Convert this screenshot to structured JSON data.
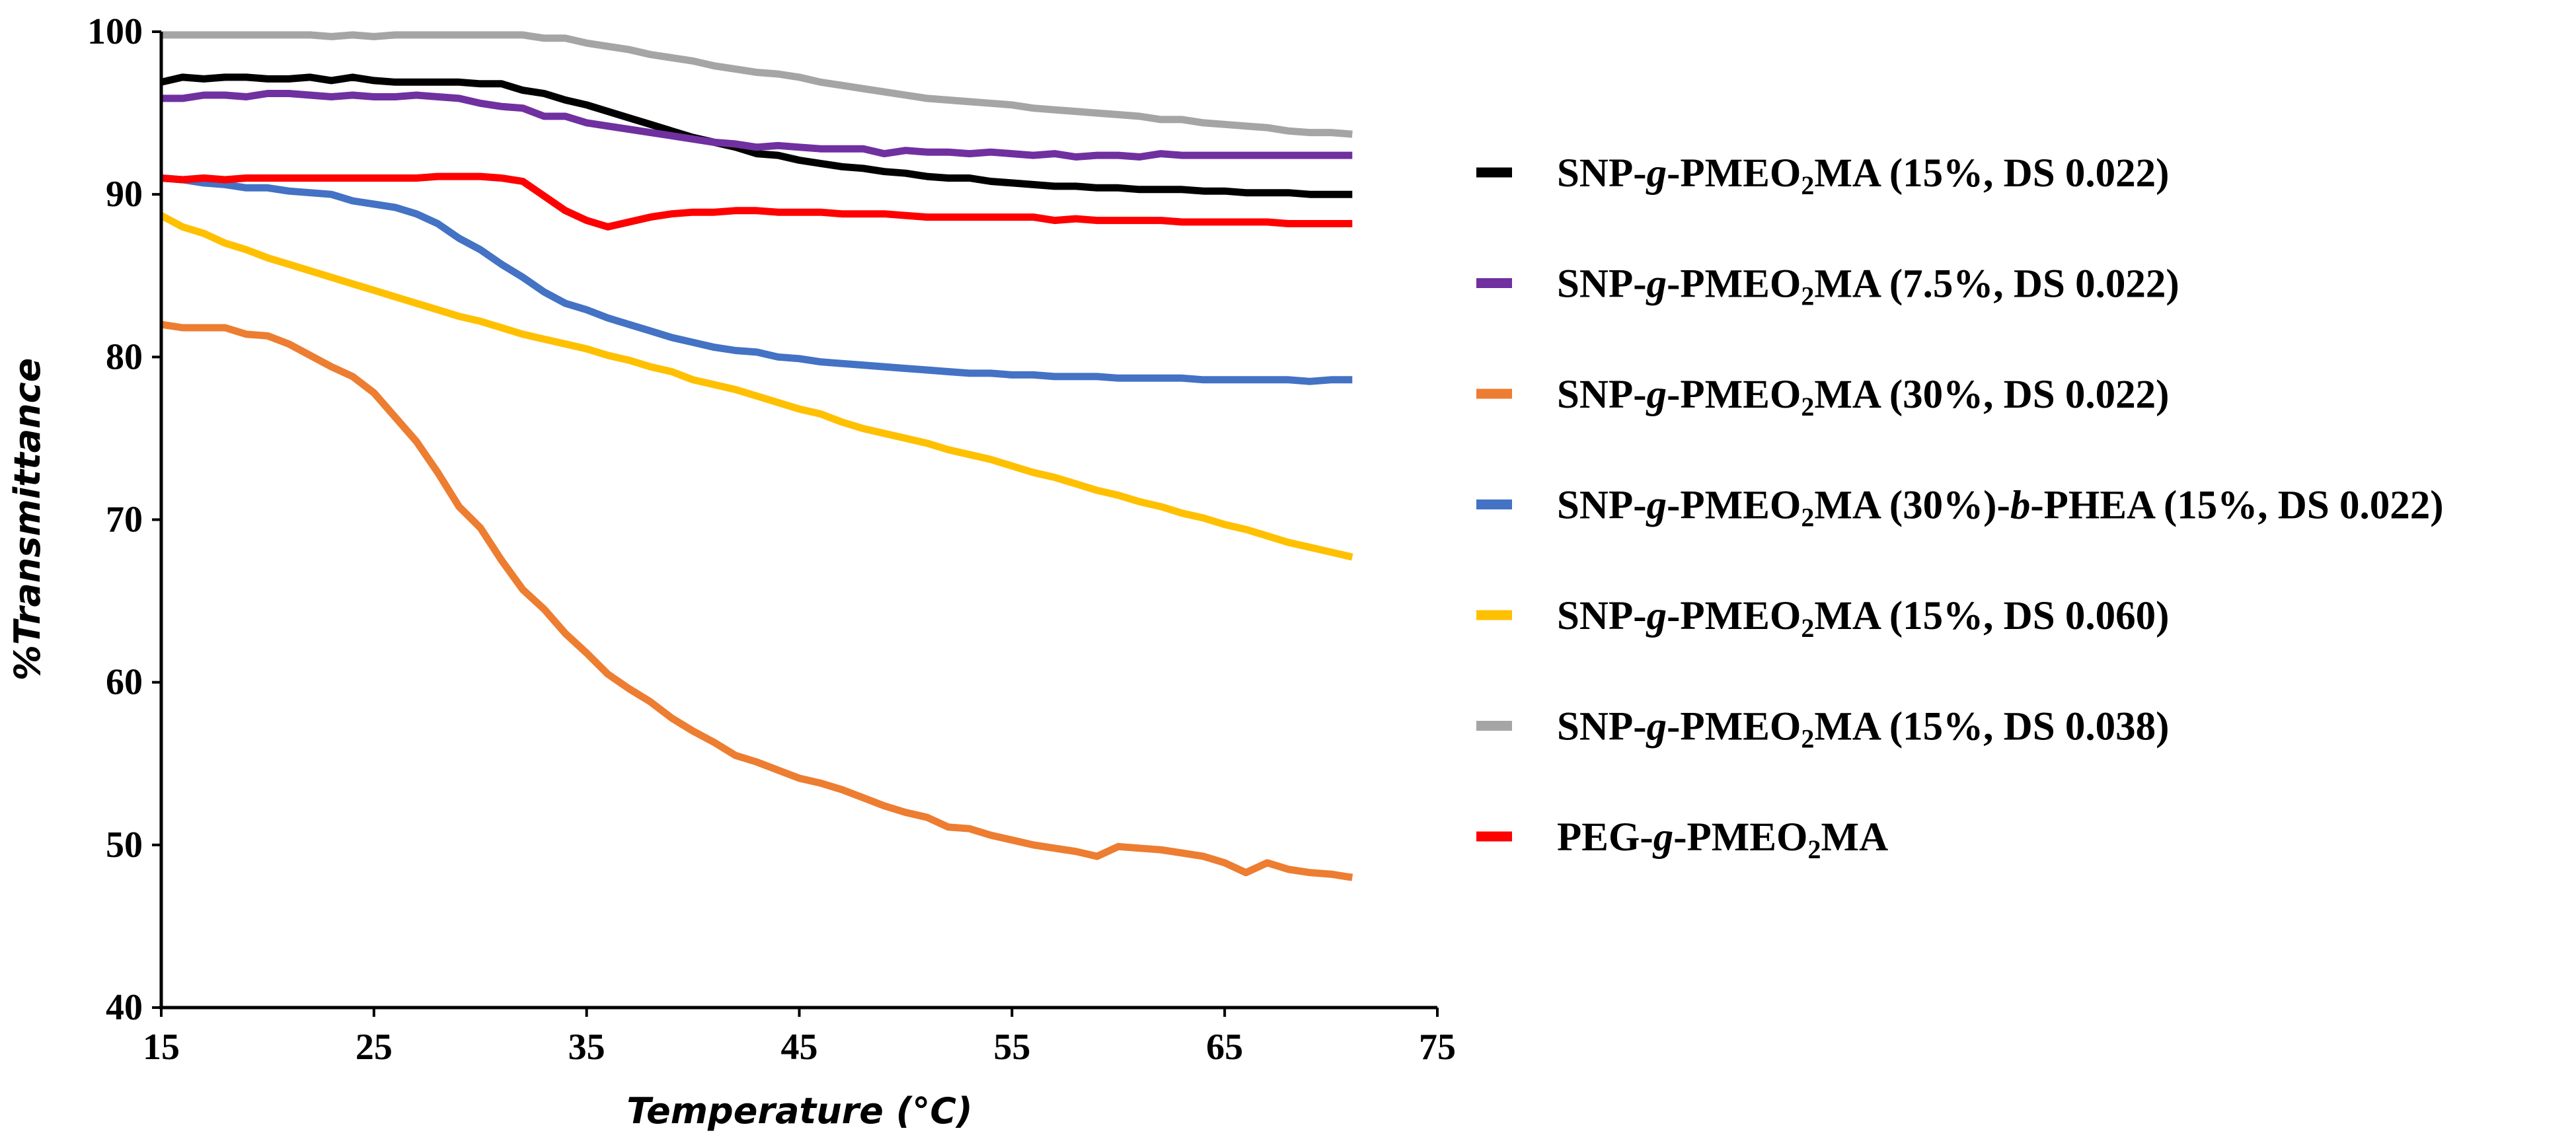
{
  "chart_data": {
    "type": "line",
    "xlabel": "Temperature (°C)",
    "ylabel": "%Transmittance",
    "xlim": [
      15,
      75
    ],
    "ylim": [
      40,
      100
    ],
    "xticks": [
      15,
      25,
      35,
      45,
      55,
      65,
      75
    ],
    "yticks": [
      40,
      50,
      60,
      70,
      80,
      90,
      100
    ],
    "grid": false,
    "legend_position": "right",
    "series": [
      {
        "name": "SNP-g-PMEO2MA (15%, DS 0.022)",
        "color": "#000000",
        "x": [
          15,
          16,
          17,
          18,
          19,
          20,
          21,
          22,
          23,
          24,
          25,
          26,
          27,
          28,
          29,
          30,
          31,
          32,
          33,
          34,
          35,
          36,
          37,
          38,
          39,
          40,
          41,
          42,
          43,
          44,
          45,
          46,
          47,
          48,
          49,
          50,
          51,
          52,
          53,
          54,
          55,
          56,
          57,
          58,
          59,
          60,
          61,
          62,
          63,
          64,
          65,
          66,
          67,
          68,
          69,
          70,
          71
        ],
        "y": [
          96.9,
          97.2,
          97.1,
          97.2,
          97.2,
          97.1,
          97.1,
          97.2,
          97.0,
          97.2,
          97.0,
          96.9,
          96.9,
          96.9,
          96.9,
          96.8,
          96.8,
          96.4,
          96.2,
          95.8,
          95.5,
          95.1,
          94.7,
          94.3,
          93.9,
          93.5,
          93.2,
          92.9,
          92.5,
          92.4,
          92.1,
          91.9,
          91.7,
          91.6,
          91.4,
          91.3,
          91.1,
          91.0,
          91.0,
          90.8,
          90.7,
          90.6,
          90.5,
          90.5,
          90.4,
          90.4,
          90.3,
          90.3,
          90.3,
          90.2,
          90.2,
          90.1,
          90.1,
          90.1,
          90.0,
          90.0,
          90.0
        ]
      },
      {
        "name": "SNP-g-PMEO2MA (7.5%, DS 0.022)",
        "color": "#7030a0",
        "x": [
          15,
          16,
          17,
          18,
          19,
          20,
          21,
          22,
          23,
          24,
          25,
          26,
          27,
          28,
          29,
          30,
          31,
          32,
          33,
          34,
          35,
          36,
          37,
          38,
          39,
          40,
          41,
          42,
          43,
          44,
          45,
          46,
          47,
          48,
          49,
          50,
          51,
          52,
          53,
          54,
          55,
          56,
          57,
          58,
          59,
          60,
          61,
          62,
          63,
          64,
          65,
          66,
          67,
          68,
          69,
          70,
          71
        ],
        "y": [
          95.9,
          95.9,
          96.1,
          96.1,
          96.0,
          96.2,
          96.2,
          96.1,
          96.0,
          96.1,
          96.0,
          96.0,
          96.1,
          96.0,
          95.9,
          95.6,
          95.4,
          95.3,
          94.8,
          94.8,
          94.4,
          94.2,
          94.0,
          93.8,
          93.6,
          93.4,
          93.2,
          93.1,
          92.9,
          93.0,
          92.9,
          92.8,
          92.8,
          92.8,
          92.5,
          92.7,
          92.6,
          92.6,
          92.5,
          92.6,
          92.5,
          92.4,
          92.5,
          92.3,
          92.4,
          92.4,
          92.3,
          92.5,
          92.4,
          92.4,
          92.4,
          92.4,
          92.4,
          92.4,
          92.4,
          92.4,
          92.4
        ]
      },
      {
        "name": "SNP-g-PMEO2MA (30%, DS 0.022)",
        "color": "#ed7d31",
        "x": [
          15,
          16,
          17,
          18,
          19,
          20,
          21,
          22,
          23,
          24,
          25,
          26,
          27,
          28,
          29,
          30,
          31,
          32,
          33,
          34,
          35,
          36,
          37,
          38,
          39,
          40,
          41,
          42,
          43,
          44,
          45,
          46,
          47,
          48,
          49,
          50,
          51,
          52,
          53,
          54,
          55,
          56,
          57,
          58,
          59,
          60,
          61,
          62,
          63,
          64,
          65,
          66,
          67,
          68,
          69,
          70,
          71
        ],
        "y": [
          82.0,
          81.8,
          81.8,
          81.8,
          81.4,
          81.3,
          80.8,
          80.1,
          79.4,
          78.8,
          77.8,
          76.3,
          74.8,
          72.9,
          70.8,
          69.5,
          67.5,
          65.7,
          64.5,
          63.0,
          61.8,
          60.5,
          59.6,
          58.8,
          57.8,
          57.0,
          56.3,
          55.5,
          55.1,
          54.6,
          54.1,
          53.8,
          53.4,
          52.9,
          52.4,
          52.0,
          51.7,
          51.1,
          51.0,
          50.6,
          50.3,
          50.0,
          49.8,
          49.6,
          49.3,
          49.9,
          49.8,
          49.7,
          49.5,
          49.3,
          48.9,
          48.3,
          48.9,
          48.5,
          48.3,
          48.2,
          48.0
        ]
      },
      {
        "name": "SNP-g-PMEO2MA (30%)-b-PHEA (15%, DS 0.022)",
        "color": "#4472c4",
        "x": [
          15,
          16,
          17,
          18,
          19,
          20,
          21,
          22,
          23,
          24,
          25,
          26,
          27,
          28,
          29,
          30,
          31,
          32,
          33,
          34,
          35,
          36,
          37,
          38,
          39,
          40,
          41,
          42,
          43,
          44,
          45,
          46,
          47,
          48,
          49,
          50,
          51,
          52,
          53,
          54,
          55,
          56,
          57,
          58,
          59,
          60,
          61,
          62,
          63,
          64,
          65,
          66,
          67,
          68,
          69,
          70,
          71
        ],
        "y": [
          91.0,
          90.9,
          90.7,
          90.6,
          90.4,
          90.4,
          90.2,
          90.1,
          90.0,
          89.6,
          89.4,
          89.2,
          88.8,
          88.2,
          87.3,
          86.6,
          85.7,
          84.9,
          84.0,
          83.3,
          82.9,
          82.4,
          82.0,
          81.6,
          81.2,
          80.9,
          80.6,
          80.4,
          80.3,
          80.0,
          79.9,
          79.7,
          79.6,
          79.5,
          79.4,
          79.3,
          79.2,
          79.1,
          79.0,
          79.0,
          78.9,
          78.9,
          78.8,
          78.8,
          78.8,
          78.7,
          78.7,
          78.7,
          78.7,
          78.6,
          78.6,
          78.6,
          78.6,
          78.6,
          78.5,
          78.6,
          78.6
        ]
      },
      {
        "name": "SNP-g-PMEO2MA (15%, DS 0.060)",
        "color": "#ffc000",
        "x": [
          15,
          16,
          17,
          18,
          19,
          20,
          21,
          22,
          23,
          24,
          25,
          26,
          27,
          28,
          29,
          30,
          31,
          32,
          33,
          34,
          35,
          36,
          37,
          38,
          39,
          40,
          41,
          42,
          43,
          44,
          45,
          46,
          47,
          48,
          49,
          50,
          51,
          52,
          53,
          54,
          55,
          56,
          57,
          58,
          59,
          60,
          61,
          62,
          63,
          64,
          65,
          66,
          67,
          68,
          69,
          70,
          71
        ],
        "y": [
          88.7,
          88.0,
          87.6,
          87.0,
          86.6,
          86.1,
          85.7,
          85.3,
          84.9,
          84.5,
          84.1,
          83.7,
          83.3,
          82.9,
          82.5,
          82.2,
          81.8,
          81.4,
          81.1,
          80.8,
          80.5,
          80.1,
          79.8,
          79.4,
          79.1,
          78.6,
          78.3,
          78.0,
          77.6,
          77.2,
          76.8,
          76.5,
          76.0,
          75.6,
          75.3,
          75.0,
          74.7,
          74.3,
          74.0,
          73.7,
          73.3,
          72.9,
          72.6,
          72.2,
          71.8,
          71.5,
          71.1,
          70.8,
          70.4,
          70.1,
          69.7,
          69.4,
          69.0,
          68.6,
          68.3,
          68.0,
          67.7
        ]
      },
      {
        "name": "SNP-g-PMEO2MA (15%, DS 0.038)",
        "color": "#a5a5a5",
        "x": [
          15,
          16,
          17,
          18,
          19,
          20,
          21,
          22,
          23,
          24,
          25,
          26,
          27,
          28,
          29,
          30,
          31,
          32,
          33,
          34,
          35,
          36,
          37,
          38,
          39,
          40,
          41,
          42,
          43,
          44,
          45,
          46,
          47,
          48,
          49,
          50,
          51,
          52,
          53,
          54,
          55,
          56,
          57,
          58,
          59,
          60,
          61,
          62,
          63,
          64,
          65,
          66,
          67,
          68,
          69,
          70,
          71
        ],
        "y": [
          99.8,
          99.8,
          99.8,
          99.8,
          99.8,
          99.8,
          99.8,
          99.8,
          99.7,
          99.8,
          99.7,
          99.8,
          99.8,
          99.8,
          99.8,
          99.8,
          99.8,
          99.8,
          99.6,
          99.6,
          99.3,
          99.1,
          98.9,
          98.6,
          98.4,
          98.2,
          97.9,
          97.7,
          97.5,
          97.4,
          97.2,
          96.9,
          96.7,
          96.5,
          96.3,
          96.1,
          95.9,
          95.8,
          95.7,
          95.6,
          95.5,
          95.3,
          95.2,
          95.1,
          95.0,
          94.9,
          94.8,
          94.6,
          94.6,
          94.4,
          94.3,
          94.2,
          94.1,
          93.9,
          93.8,
          93.8,
          93.7
        ]
      },
      {
        "name": "PEG-g-PMEO2MA",
        "color": "#ff0000",
        "x": [
          15,
          16,
          17,
          18,
          19,
          20,
          21,
          22,
          23,
          24,
          25,
          26,
          27,
          28,
          29,
          30,
          31,
          32,
          33,
          34,
          35,
          36,
          37,
          38,
          39,
          40,
          41,
          42,
          43,
          44,
          45,
          46,
          47,
          48,
          49,
          50,
          51,
          52,
          53,
          54,
          55,
          56,
          57,
          58,
          59,
          60,
          61,
          62,
          63,
          64,
          65,
          66,
          67,
          68,
          69,
          70,
          71
        ],
        "y": [
          91.0,
          90.9,
          91.0,
          90.9,
          91.0,
          91.0,
          91.0,
          91.0,
          91.0,
          91.0,
          91.0,
          91.0,
          91.0,
          91.1,
          91.1,
          91.1,
          91.0,
          90.8,
          89.9,
          89.0,
          88.4,
          88.0,
          88.3,
          88.6,
          88.8,
          88.9,
          88.9,
          89.0,
          89.0,
          88.9,
          88.9,
          88.9,
          88.8,
          88.8,
          88.8,
          88.7,
          88.6,
          88.6,
          88.6,
          88.6,
          88.6,
          88.6,
          88.4,
          88.5,
          88.4,
          88.4,
          88.4,
          88.4,
          88.3,
          88.3,
          88.3,
          88.3,
          88.3,
          88.2,
          88.2,
          88.2,
          88.2
        ]
      }
    ]
  },
  "legend": [
    {
      "color": "#000000",
      "parts": [
        {
          "t": "SNP-"
        },
        {
          "t": "g",
          "i": true
        },
        {
          "t": "-PMEO"
        },
        {
          "t": "2",
          "sub": true
        },
        {
          "t": "MA (15%, DS 0.022)"
        }
      ]
    },
    {
      "color": "#7030a0",
      "parts": [
        {
          "t": "SNP-"
        },
        {
          "t": "g",
          "i": true
        },
        {
          "t": "-PMEO"
        },
        {
          "t": "2",
          "sub": true
        },
        {
          "t": "MA (7.5%, DS 0.022)"
        }
      ]
    },
    {
      "color": "#ed7d31",
      "parts": [
        {
          "t": "SNP-"
        },
        {
          "t": "g",
          "i": true
        },
        {
          "t": "-PMEO"
        },
        {
          "t": "2",
          "sub": true
        },
        {
          "t": "MA (30%, DS 0.022)"
        }
      ]
    },
    {
      "color": "#4472c4",
      "parts": [
        {
          "t": "SNP-"
        },
        {
          "t": "g",
          "i": true
        },
        {
          "t": "-PMEO"
        },
        {
          "t": "2",
          "sub": true
        },
        {
          "t": "MA (30%)-"
        },
        {
          "t": "b",
          "i": true
        },
        {
          "t": "-PHEA (15%, DS 0.022)"
        }
      ]
    },
    {
      "color": "#ffc000",
      "parts": [
        {
          "t": "SNP-"
        },
        {
          "t": "g",
          "i": true
        },
        {
          "t": "-PMEO"
        },
        {
          "t": "2",
          "sub": true
        },
        {
          "t": "MA (15%, DS 0.060)"
        }
      ]
    },
    {
      "color": "#a5a5a5",
      "parts": [
        {
          "t": "SNP-"
        },
        {
          "t": "g",
          "i": true
        },
        {
          "t": "-PMEO"
        },
        {
          "t": "2",
          "sub": true
        },
        {
          "t": "MA (15%, DS 0.038)"
        }
      ]
    },
    {
      "color": "#ff0000",
      "parts": [
        {
          "t": "PEG-"
        },
        {
          "t": "g",
          "i": true
        },
        {
          "t": "-PMEO"
        },
        {
          "t": "2",
          "sub": true
        },
        {
          "t": "MA"
        }
      ]
    }
  ]
}
